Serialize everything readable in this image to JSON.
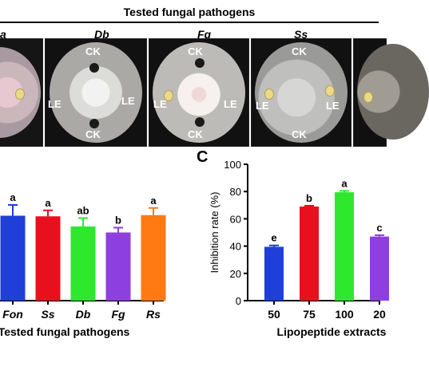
{
  "figure": {
    "heading": "Tested fungal pathogens",
    "panel_labels": [
      "a",
      "Db",
      "Fg",
      "Ss"
    ],
    "plate_labels": {
      "control": "CK",
      "extract": "LE"
    },
    "section_label_c": "C"
  },
  "chart_data": [
    {
      "type": "bar",
      "categories": [
        "Fon",
        "Ss",
        "Db",
        "Fg",
        "Rs"
      ],
      "values": [
        71,
        70.5,
        62,
        57,
        71.5
      ],
      "errors": [
        9,
        5,
        7,
        4,
        6
      ],
      "significance": [
        "a",
        "a",
        "ab",
        "b",
        "a"
      ],
      "colors": [
        "#1f3fd8",
        "#e8101c",
        "#2ee82e",
        "#8e3fe0",
        "#ff7a12"
      ],
      "xlabel": "Tested fungal pathogens",
      "ylim": [
        0,
        100
      ]
    },
    {
      "type": "bar",
      "categories": [
        "50",
        "75",
        "100",
        "20"
      ],
      "values": [
        39.5,
        69,
        79.5,
        47
      ],
      "errors": [
        1,
        0.6,
        1,
        1
      ],
      "significance": [
        "e",
        "b",
        "a",
        "c"
      ],
      "colors": [
        "#1f3fd8",
        "#e8101c",
        "#2ee82e",
        "#8e3fe0"
      ],
      "xlabel": "Lipopeptide extracts",
      "ylabel": "Inhibition rate (%)",
      "yticks": [
        "0",
        "20",
        "40",
        "60",
        "80",
        "100"
      ],
      "ylim": [
        0,
        100
      ]
    }
  ]
}
